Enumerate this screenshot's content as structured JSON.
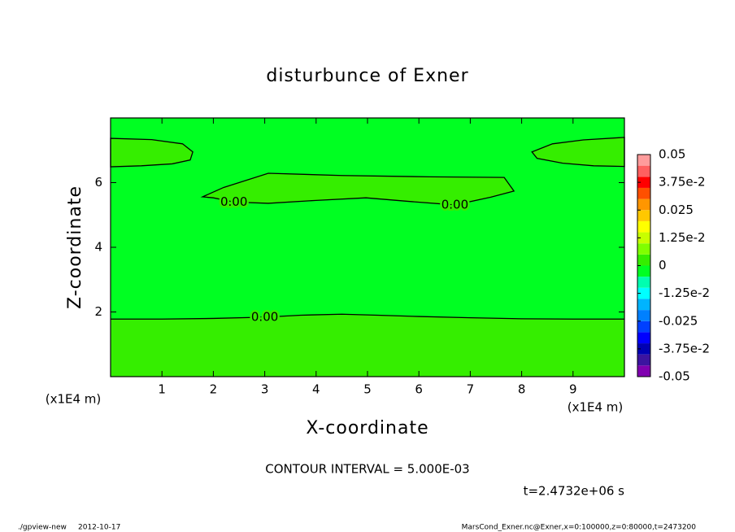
{
  "chart_data": {
    "type": "contour",
    "title": "disturbunce of Exner",
    "xlabel": "X-coordinate",
    "ylabel": "Z-coordinate",
    "x_unit": "(x1E4 m)",
    "xlim": [
      0,
      10
    ],
    "ylim": [
      0,
      8
    ],
    "xticks": [
      1,
      2,
      3,
      4,
      5,
      6,
      7,
      8,
      9
    ],
    "yticks": [
      2,
      4,
      6
    ],
    "clim": [
      -0.05,
      0.05
    ],
    "cticks": [
      {
        "value": 0.05,
        "label": "0.05"
      },
      {
        "value": 0.0375,
        "label": "3.75e-2"
      },
      {
        "value": 0.025,
        "label": "0.025"
      },
      {
        "value": 0.0125,
        "label": "1.25e-2"
      },
      0,
      {
        "value": -0.0125,
        "label": "-1.25e-2"
      },
      {
        "value": -0.025,
        "label": "-0.025"
      },
      {
        "value": -0.0375,
        "label": "-3.75e-2"
      },
      {
        "value": -0.05,
        "label": "-0.05"
      }
    ],
    "colors": [
      "#8000b0",
      "#3c14a0",
      "#0000b4",
      "#0000ff",
      "#0040ff",
      "#0080ff",
      "#00b4ff",
      "#00ffff",
      "#00ffb0",
      "#00ff22",
      "#35ee00",
      "#80ff00",
      "#c8ff00",
      "#ffff00",
      "#ffc800",
      "#ff9600",
      "#ff5000",
      "#ff0000",
      "#ff6060",
      "#ff9c9c"
    ],
    "contours": [
      {
        "level": {
          "value": 0,
          "label": "0.00"
        },
        "closed": false,
        "x": [
          0,
          1,
          2,
          3,
          3.7,
          4.5,
          5.2,
          6,
          7,
          8,
          9,
          10
        ],
        "y": [
          1.78,
          1.78,
          1.8,
          1.84,
          1.9,
          1.93,
          1.9,
          1.86,
          1.82,
          1.79,
          1.78,
          1.78
        ]
      },
      {
        "level": {
          "value": 0,
          "label": "0.00"
        },
        "closed": true,
        "x": [
          0,
          0.8,
          1.4,
          1.6,
          1.55,
          1.2,
          0.6,
          0
        ],
        "y": [
          7.37,
          7.33,
          7.2,
          6.95,
          6.7,
          6.58,
          6.52,
          6.49
        ]
      },
      {
        "level": {
          "value": 0,
          "label": "0.00"
        },
        "closed": true,
        "x": [
          10,
          9.2,
          8.6,
          8.2,
          8.3,
          8.8,
          9.4,
          10
        ],
        "y": [
          7.4,
          7.32,
          7.2,
          6.95,
          6.75,
          6.6,
          6.52,
          6.5
        ]
      },
      {
        "level": {
          "value": 0,
          "label": "0.00"
        },
        "closed": true,
        "x": [
          1.79,
          2.2,
          3.07,
          4.5,
          6.2,
          7.66,
          7.85,
          7.4,
          6.7,
          5.8,
          4.97,
          4,
          3.07,
          2.4,
          2.0
        ],
        "y": [
          5.56,
          5.85,
          6.29,
          6.22,
          6.18,
          6.16,
          5.74,
          5.55,
          5.31,
          5.42,
          5.53,
          5.45,
          5.36,
          5.4,
          5.53
        ]
      }
    ],
    "contour_interval": "CONTOUR INTERVAL = 5.000E-03",
    "time": "t=2.4732e+06 s",
    "footer_left": [
      "./gpview-new",
      "2012-10-17"
    ],
    "footer_right": "MarsCond_Exner.nc@Exner,x=0:100000,z=0:80000,t=2473200"
  }
}
